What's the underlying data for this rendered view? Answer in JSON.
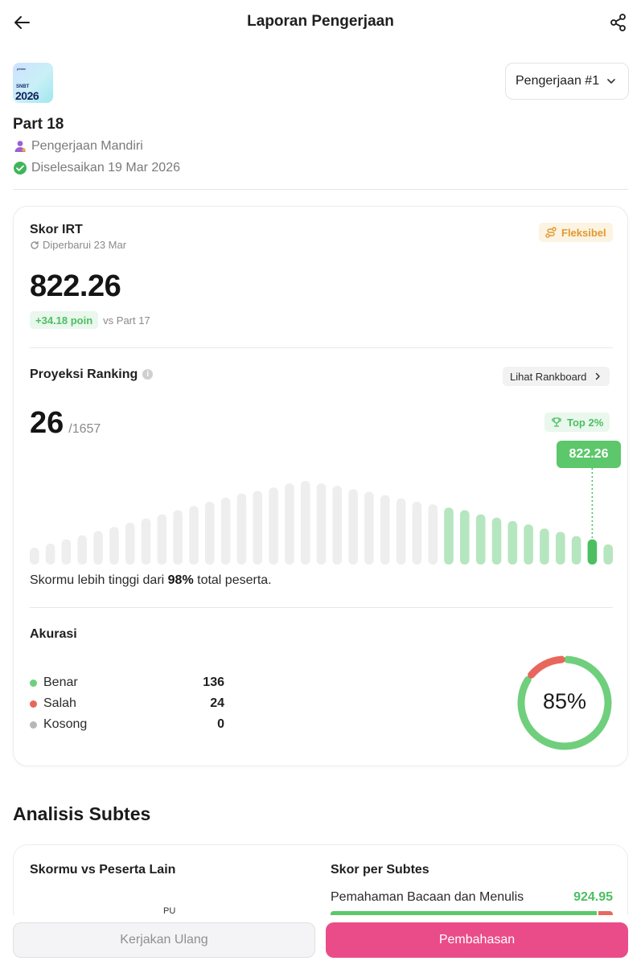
{
  "header": {
    "title": "Laporan Pengerjaan",
    "back_icon": "arrow-left-icon",
    "share_icon": "share-icon"
  },
  "exam": {
    "logo_small": "pintar",
    "logo_label": "SNBT",
    "logo_year": "2026",
    "part": "Part 18",
    "mode": "Pengerjaan Mandiri",
    "completed": "Diselesaikan 19 Mar 2026"
  },
  "attempt_select": {
    "value": "Pengerjaan #1"
  },
  "score": {
    "title": "Skor IRT",
    "updated": "Diperbarui 23 Mar",
    "badge": "Fleksibel",
    "value": "822.26",
    "delta": "+34.18 poin",
    "vs": "vs Part 17"
  },
  "ranking": {
    "title": "Proyeksi Ranking",
    "button": "Lihat Rankboard",
    "rank": "26",
    "total": "/1657",
    "top_badge": "Top 2%",
    "tooltip": "822.26",
    "statement_prefix": "Skormu lebih tinggi dari ",
    "statement_pct": "98%",
    "statement_suffix": " total peserta."
  },
  "chart_data": {
    "type": "bar",
    "bar_count": 37,
    "values": [
      20,
      25,
      30,
      35,
      40,
      45,
      50,
      55,
      60,
      65,
      70,
      75,
      80,
      85,
      88,
      92,
      97,
      100,
      97,
      94,
      90,
      87,
      83,
      79,
      75,
      72,
      68,
      65,
      60,
      56,
      52,
      48,
      43,
      39,
      34,
      30,
      24
    ],
    "highlight_from_index": 26,
    "user_bar_index": 35,
    "user_score": "822.26",
    "colors": {
      "base": "#eeeeee",
      "above": "#b6e6bf",
      "user": "#4cbf62"
    }
  },
  "accuracy": {
    "title": "Akurasi",
    "percent": "85%",
    "items": [
      {
        "label": "Benar",
        "value": "136",
        "color": "#6fcf7c"
      },
      {
        "label": "Salah",
        "value": "24",
        "color": "#e8675c"
      },
      {
        "label": "Kosong",
        "value": "0",
        "color": "#b7b7b7"
      }
    ],
    "fractions": {
      "benar": 0.85,
      "salah": 0.15
    }
  },
  "analysis": {
    "title": "Analisis Subtes",
    "left_title": "Skormu vs Peserta Lain",
    "radar_label": "PU",
    "right_title": "Skor per Subtes",
    "subtests": [
      {
        "name": "Pemahaman Bacaan dan Menulis",
        "score": "924.95",
        "fraction": 0.95
      }
    ]
  },
  "actions": {
    "retry": "Kerjakan Ulang",
    "review": "Pembahasan"
  },
  "colors": {
    "accent_pink": "#ea4c89",
    "green": "#5cc76b",
    "red": "#e8675c",
    "orange": "#e09a2e"
  }
}
